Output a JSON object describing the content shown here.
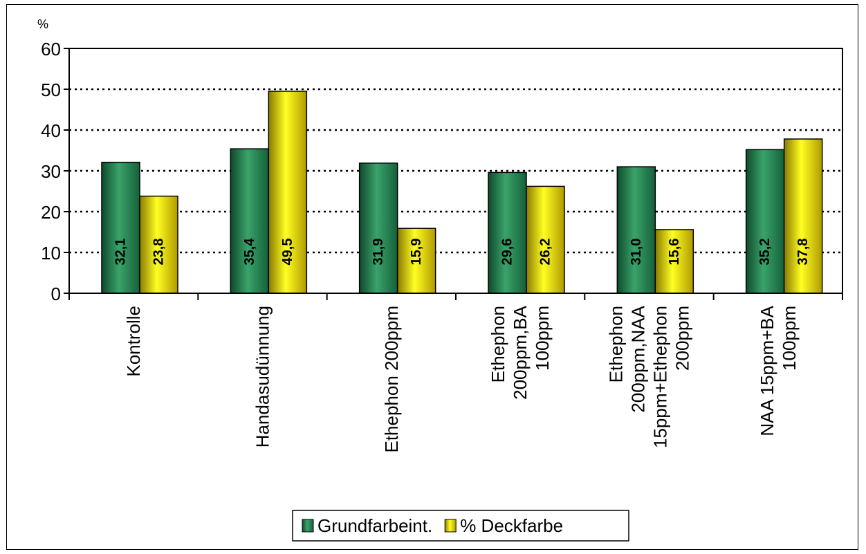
{
  "chart_data": {
    "type": "bar",
    "ylabel": "%",
    "ylim": [
      0,
      60
    ],
    "yticks": [
      0,
      10,
      20,
      30,
      40,
      50,
      60
    ],
    "yticks_labels": [
      "0",
      "10",
      "20",
      "30",
      "40",
      "50",
      "60"
    ],
    "grid": "horizontal-dotted",
    "legend_position": "bottom",
    "categories": [
      [
        "Kontrolle"
      ],
      [
        "Handasudünnung"
      ],
      [
        "Ethephon 200ppm"
      ],
      [
        "Ethephon",
        "200ppm,BA",
        "100ppm"
      ],
      [
        "Ethephon",
        "200ppm,NAA",
        "15ppm+Ethephon",
        "200ppm"
      ],
      [
        "NAA 15ppm+BA",
        "100ppm"
      ]
    ],
    "series": [
      {
        "name": "Grundfarbeint.",
        "color": "#2e8b57",
        "values": [
          32.1,
          35.4,
          31.9,
          29.6,
          31.0,
          35.2
        ],
        "labels": [
          "32,1",
          "35,4",
          "31,9",
          "29,6",
          "31,0",
          "35,2"
        ]
      },
      {
        "name": "% Deckfarbe",
        "color": "#ffff00",
        "values": [
          23.8,
          49.5,
          15.9,
          26.2,
          15.6,
          37.8
        ],
        "labels": [
          "23,8",
          "49,5",
          "15,9",
          "26,2",
          "15,6",
          "37,8"
        ]
      }
    ]
  }
}
